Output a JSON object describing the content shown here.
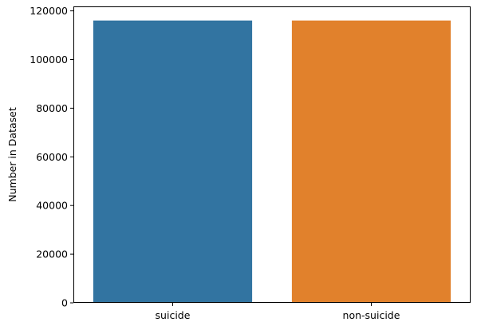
{
  "chart_data": {
    "type": "bar",
    "categories": [
      "suicide",
      "non-suicide"
    ],
    "values": [
      116037,
      116037
    ],
    "colors": [
      "#3274a1",
      "#e1812c"
    ],
    "title": "",
    "xlabel": "",
    "ylabel": "Number in Dataset",
    "ylim": [
      0,
      121839
    ],
    "yticks": [
      0,
      20000,
      40000,
      60000,
      80000,
      100000,
      120000
    ],
    "ytick_labels": [
      "0",
      "20000",
      "40000",
      "60000",
      "80000",
      "100000",
      "120000"
    ],
    "grid": false,
    "legend": "none"
  }
}
